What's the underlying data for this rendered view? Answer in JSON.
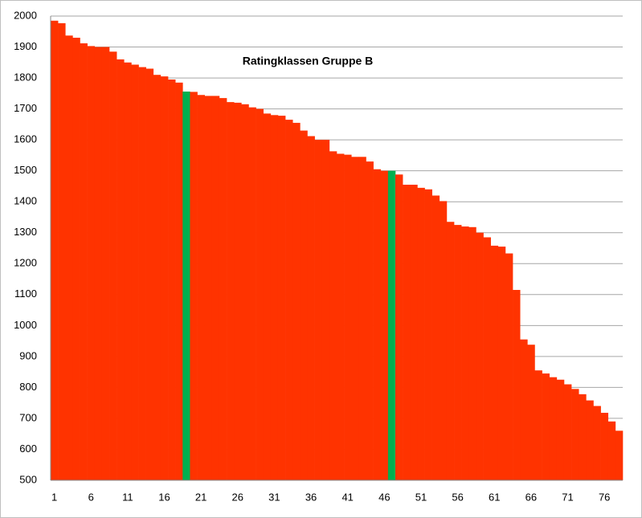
{
  "chart_data": {
    "type": "bar",
    "title": "Ratingklassen Gruppe B",
    "categories": [
      "1",
      null,
      null,
      null,
      null,
      "6",
      null,
      null,
      null,
      null,
      "11",
      null,
      null,
      null,
      null,
      "16",
      null,
      null,
      null,
      null,
      "21",
      null,
      null,
      null,
      null,
      "26",
      null,
      null,
      null,
      null,
      "31",
      null,
      null,
      null,
      null,
      "36",
      null,
      null,
      null,
      null,
      "41",
      null,
      null,
      null,
      null,
      "46",
      null,
      null,
      null,
      null,
      "51",
      null,
      null,
      null,
      null,
      "56",
      null,
      null,
      null,
      null,
      "61",
      null,
      null,
      null,
      null,
      "66",
      null,
      null,
      null,
      null,
      "71",
      null,
      null,
      null,
      null,
      "76",
      null,
      null
    ],
    "values": [
      1985,
      1977,
      1937,
      1930,
      1912,
      1903,
      1900,
      1900,
      1885,
      1860,
      1850,
      1843,
      1835,
      1830,
      1810,
      1805,
      1795,
      1785,
      1756,
      1755,
      1745,
      1742,
      1742,
      1735,
      1722,
      1720,
      1715,
      1705,
      1700,
      1685,
      1680,
      1678,
      1665,
      1655,
      1630,
      1612,
      1600,
      1600,
      1563,
      1555,
      1552,
      1545,
      1545,
      1530,
      1505,
      1500,
      1500,
      1488,
      1455,
      1455,
      1445,
      1440,
      1420,
      1402,
      1335,
      1325,
      1320,
      1318,
      1300,
      1285,
      1258,
      1255,
      1233,
      1115,
      955,
      938,
      855,
      845,
      833,
      825,
      810,
      795,
      778,
      758,
      740,
      718,
      690,
      660
    ],
    "colors": [
      "#ff3300",
      "#ff3300",
      "#ff3300",
      "#ff3300",
      "#ff3300",
      "#ff3300",
      "#ff3300",
      "#ff3300",
      "#ff3300",
      "#ff3300",
      "#ff3300",
      "#ff3300",
      "#ff3300",
      "#ff3300",
      "#ff3300",
      "#ff3300",
      "#ff3300",
      "#ff3300",
      "#00b050",
      "#ff3300",
      "#ff3300",
      "#ff3300",
      "#ff3300",
      "#ff3300",
      "#ff3300",
      "#ff3300",
      "#ff3300",
      "#ff3300",
      "#ff3300",
      "#ff3300",
      "#ff3300",
      "#ff3300",
      "#ff3300",
      "#ff3300",
      "#ff3300",
      "#ff3300",
      "#ff3300",
      "#ff3300",
      "#ff3300",
      "#ff3300",
      "#ff3300",
      "#ff3300",
      "#ff3300",
      "#ff3300",
      "#ff3300",
      "#ff3300",
      "#00b050",
      "#ff3300",
      "#ff3300",
      "#ff3300",
      "#ff3300",
      "#ff3300",
      "#ff3300",
      "#ff3300",
      "#ff3300",
      "#ff3300",
      "#ff3300",
      "#ff3300",
      "#ff3300",
      "#ff3300",
      "#ff3300",
      "#ff3300",
      "#ff3300",
      "#ff3300",
      "#ff3300",
      "#ff3300",
      "#ff3300",
      "#ff3300",
      "#ff3300",
      "#ff3300",
      "#ff3300",
      "#ff3300",
      "#ff3300",
      "#ff3300",
      "#ff3300",
      "#ff3300",
      "#ff3300",
      "#ff3300"
    ],
    "ylim": [
      500,
      2000
    ],
    "yticks": [
      500,
      600,
      700,
      800,
      900,
      1000,
      1100,
      1200,
      1300,
      1400,
      1500,
      1600,
      1700,
      1800,
      1900,
      2000
    ],
    "grid": true
  }
}
